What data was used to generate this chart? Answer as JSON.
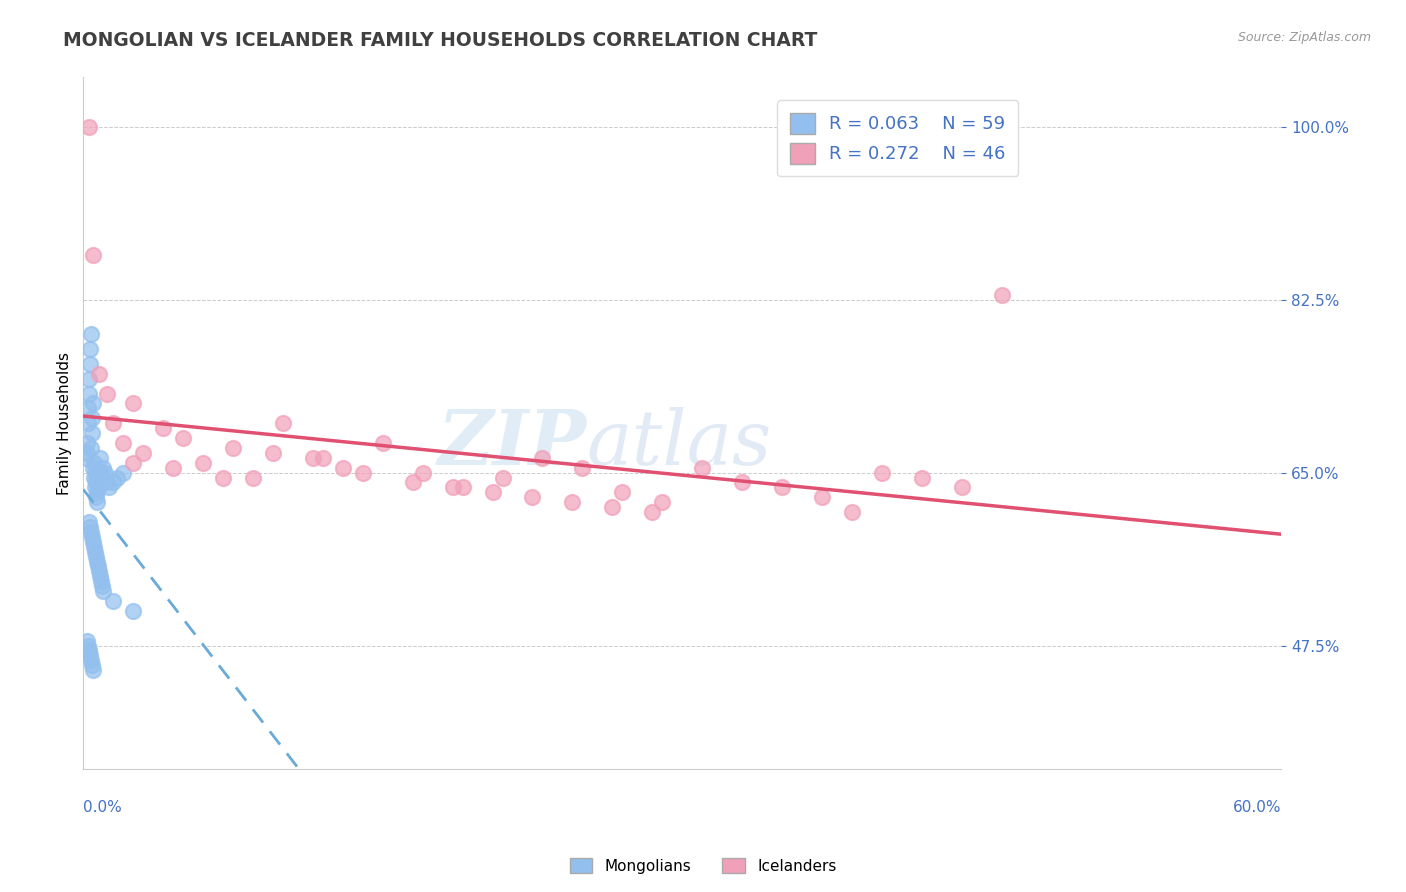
{
  "title": "MONGOLIAN VS ICELANDER FAMILY HOUSEHOLDS CORRELATION CHART",
  "source": "Source: ZipAtlas.com",
  "ylabel": "Family Households",
  "xlim": [
    0.0,
    60.0
  ],
  "ylim": [
    35.0,
    105.0
  ],
  "yticks": [
    47.5,
    65.0,
    82.5,
    100.0
  ],
  "ytick_labels": [
    "47.5%",
    "65.0%",
    "82.5%",
    "100.0%"
  ],
  "mongolian_color": "#92bfee",
  "icelander_color": "#f0a0b8",
  "mongolian_trend_color": "#6aaad8",
  "icelander_trend_color": "#e05070",
  "watermark_zip": "ZIP",
  "watermark_atlas": "atlas",
  "mongolian_R": 0.063,
  "mongolian_N": 59,
  "icelander_R": 0.272,
  "icelander_N": 46,
  "mong_x": [
    0.15,
    0.18,
    0.2,
    0.22,
    0.25,
    0.28,
    0.3,
    0.32,
    0.35,
    0.38,
    0.4,
    0.42,
    0.45,
    0.48,
    0.5,
    0.52,
    0.55,
    0.58,
    0.6,
    0.62,
    0.65,
    0.68,
    0.7,
    0.75,
    0.8,
    0.85,
    0.9,
    0.95,
    1.0,
    1.1,
    1.2,
    1.3,
    1.5,
    1.7,
    2.0,
    0.3,
    0.35,
    0.4,
    0.45,
    0.5,
    0.55,
    0.6,
    0.65,
    0.7,
    0.75,
    0.8,
    0.85,
    0.9,
    0.95,
    1.0,
    1.5,
    2.5,
    0.2,
    0.25,
    0.3,
    0.35,
    0.4,
    0.45,
    0.5
  ],
  "mong_y": [
    66.5,
    67.0,
    68.0,
    70.0,
    71.5,
    73.0,
    74.5,
    76.0,
    77.5,
    79.0,
    67.5,
    69.0,
    70.5,
    72.0,
    65.5,
    66.0,
    64.5,
    65.0,
    63.5,
    64.0,
    62.5,
    63.0,
    62.0,
    63.5,
    65.0,
    66.5,
    65.0,
    64.5,
    65.5,
    65.0,
    64.0,
    63.5,
    64.0,
    64.5,
    65.0,
    60.0,
    59.5,
    59.0,
    58.5,
    58.0,
    57.5,
    57.0,
    56.5,
    56.0,
    55.5,
    55.0,
    54.5,
    54.0,
    53.5,
    53.0,
    52.0,
    51.0,
    48.0,
    47.5,
    47.0,
    46.5,
    46.0,
    45.5,
    45.0
  ],
  "icel_x": [
    0.3,
    0.5,
    0.8,
    1.2,
    1.5,
    2.0,
    2.5,
    3.0,
    4.0,
    5.0,
    6.0,
    7.5,
    8.5,
    10.0,
    11.5,
    13.0,
    15.0,
    17.0,
    19.0,
    21.0,
    23.0,
    25.0,
    27.0,
    29.0,
    31.0,
    33.0,
    35.0,
    37.0,
    38.5,
    40.0,
    42.0,
    44.0,
    46.0,
    2.5,
    4.5,
    7.0,
    9.5,
    12.0,
    14.0,
    16.5,
    18.5,
    20.5,
    22.5,
    24.5,
    26.5,
    28.5
  ],
  "icel_y": [
    100.0,
    87.0,
    75.0,
    73.0,
    70.0,
    68.0,
    72.0,
    67.0,
    69.5,
    68.5,
    66.0,
    67.5,
    64.5,
    70.0,
    66.5,
    65.5,
    68.0,
    65.0,
    63.5,
    64.5,
    66.5,
    65.5,
    63.0,
    62.0,
    65.5,
    64.0,
    63.5,
    62.5,
    61.0,
    65.0,
    64.5,
    63.5,
    83.0,
    66.0,
    65.5,
    64.5,
    67.0,
    66.5,
    65.0,
    64.0,
    63.5,
    63.0,
    62.5,
    62.0,
    61.5,
    61.0
  ]
}
